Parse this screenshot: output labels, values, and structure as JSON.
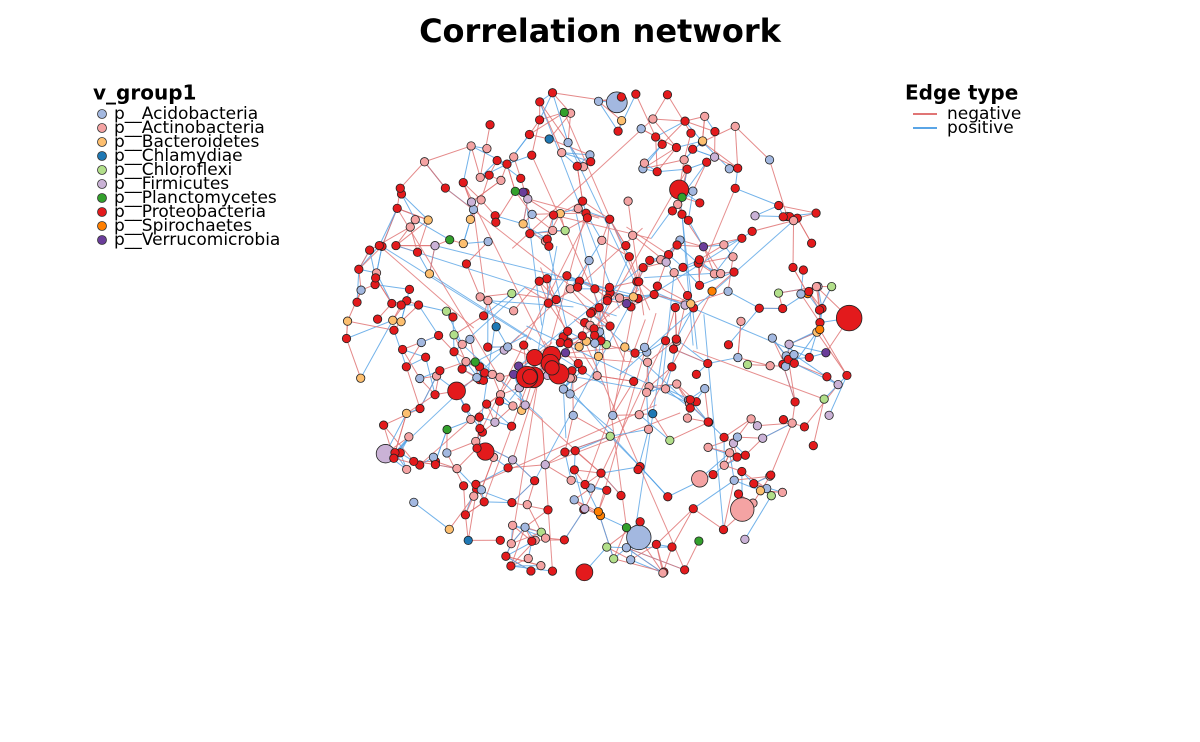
{
  "title": "Correlation network",
  "node_legend": {
    "title": "v_group1",
    "items": [
      {
        "label": "p__Acidobacteria",
        "color": "#a3b8e0"
      },
      {
        "label": "p__Actinobacteria",
        "color": "#f4a3a3"
      },
      {
        "label": "p__Bacteroidetes",
        "color": "#fdbf6f"
      },
      {
        "label": "p__Chlamydiae",
        "color": "#1f78b4"
      },
      {
        "label": "p__Chloroflexi",
        "color": "#b2df8a"
      },
      {
        "label": "p__Firmicutes",
        "color": "#cab2d6"
      },
      {
        "label": "p__Planctomycetes",
        "color": "#33a02c"
      },
      {
        "label": "p__Proteobacteria",
        "color": "#e31a1c"
      },
      {
        "label": "p__Spirochaetes",
        "color": "#ff7f00"
      },
      {
        "label": "p__Verrucomicrobia",
        "color": "#6a3d9a"
      }
    ]
  },
  "edge_legend": {
    "title": "Edge type",
    "items": [
      {
        "label": "negative",
        "color": "#e07575"
      },
      {
        "label": "positive",
        "color": "#5aa5e6"
      }
    ]
  }
}
